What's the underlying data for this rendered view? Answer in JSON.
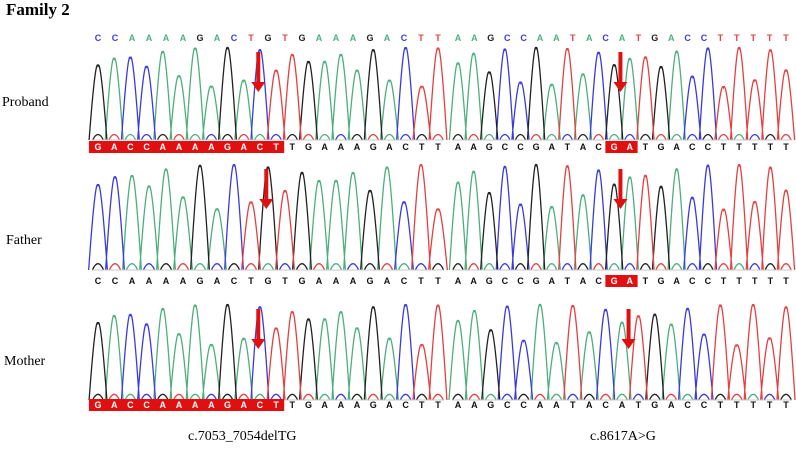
{
  "figure": {
    "title": "Family 2",
    "row_labels": [
      "Proband",
      "Father",
      "Mother"
    ],
    "captions": [
      "c.7053_7054delTG",
      "c.8617A>G"
    ]
  },
  "colors": {
    "A": "#4caf7d",
    "C": "#3a3adf",
    "G": "#222222",
    "T": "#e44040",
    "arrow": "#e01010",
    "highlight": "#e01010"
  },
  "panels": [
    {
      "id": "left",
      "reference": "CCAAAAGACTGTGAAAGACTT",
      "rows": [
        {
          "label": "Proband",
          "sequence": "GACCAAAAGACTTGAAAGACTT",
          "highlighted_prefix": "GACCAAAAGACT",
          "arrow_index": 9
        },
        {
          "label": "Father",
          "sequence": "CCAAAAGACTGTGAAAGACTT",
          "highlighted_prefix": "",
          "arrow_index": 9
        },
        {
          "label": "Mother",
          "sequence": "GACCAAAAGACTTGAAAGACTT",
          "highlighted_prefix": "GACCAAAAGACT",
          "arrow_index": 9
        }
      ]
    },
    {
      "id": "right",
      "reference": "AAGCCAATACATGACCTTTTT",
      "rows": [
        {
          "label": "Proband",
          "sequence": "AAGCCGATACGATGACCTTTTT",
          "highlight": "GA",
          "arrow_index": 10
        },
        {
          "label": "Father",
          "sequence": "AAGCCGATACGATGACCTTTTT",
          "highlight": "GA",
          "arrow_index": 10
        },
        {
          "label": "Mother",
          "sequence": "AAGCCAATACATGACCTTTTT",
          "highlight": "",
          "arrow_index": 10
        }
      ]
    }
  ]
}
